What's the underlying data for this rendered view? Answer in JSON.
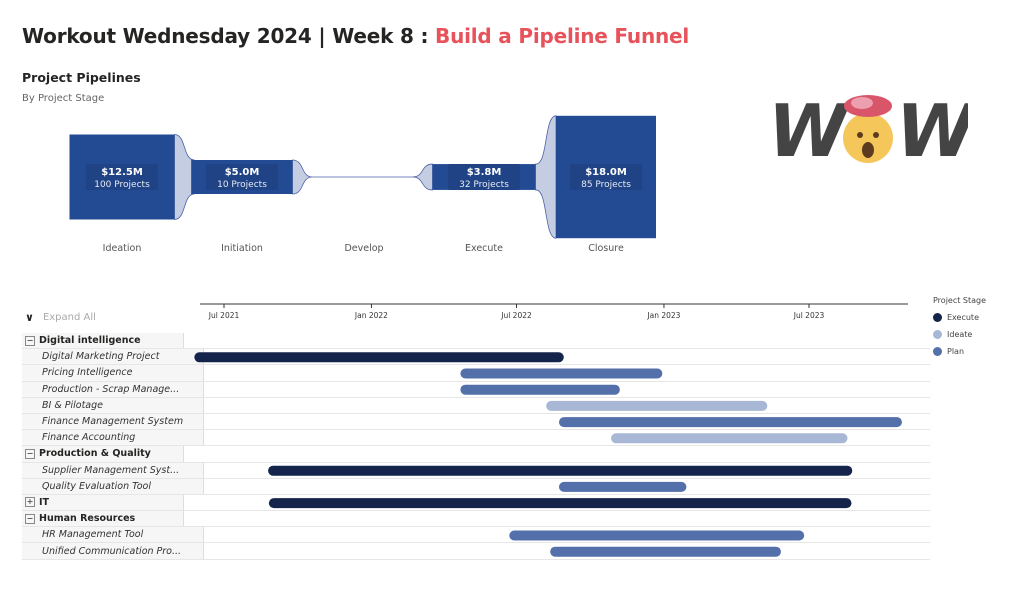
{
  "header": {
    "title_main": "Workout Wednesday 2024 | Week 8 : ",
    "title_accent": "Build a Pipeline Funnel",
    "chart_title": "Project Pipelines",
    "chart_subtitle": "By Project Stage",
    "logo_text": "WOW"
  },
  "colors": {
    "accent": "#e8525b",
    "funnel_box": "#234b93",
    "funnel_connector": "#c5cde2",
    "Execute": "#14244a",
    "Ideate": "#a9b7d6",
    "Plan": "#5370ab"
  },
  "chart_data": [
    {
      "type": "funnel",
      "stages": [
        {
          "name": "Ideation",
          "value_label": "$12.5M",
          "value": 12.5,
          "projects_label": "100 Projects"
        },
        {
          "name": "Initiation",
          "value_label": "$5.0M",
          "value": 5.0,
          "projects_label": "10 Projects"
        },
        {
          "name": "Develop",
          "value_label": "",
          "value": 0,
          "projects_label": ""
        },
        {
          "name": "Execute",
          "value_label": "$3.8M",
          "value": 3.8,
          "projects_label": "32 Projects"
        },
        {
          "name": "Closure",
          "value_label": "$18.0M",
          "value": 18.0,
          "projects_label": "85 Projects"
        }
      ]
    },
    {
      "type": "gantt",
      "expand_label": "Expand All",
      "x_ticks": [
        "Jul 2021",
        "Jan 2022",
        "Jul 2022",
        "Jan 2023",
        "Jul 2023"
      ],
      "xlim": [
        "2021-04-15",
        "2023-10-25"
      ],
      "legend_title": "Project Stage",
      "legend": [
        "Execute",
        "Ideate",
        "Plan"
      ],
      "rows": [
        {
          "label": "Digital intelligence",
          "type": "group",
          "toggle": "−"
        },
        {
          "label": "Digital Marketing Project",
          "type": "item",
          "stage": "Execute",
          "start": "2021-05-25",
          "end": "2022-08-29"
        },
        {
          "label": "Pricing Intelligence",
          "type": "item",
          "stage": "Plan",
          "start": "2022-04-22",
          "end": "2022-12-30"
        },
        {
          "label": "Production - Scrap Manage...",
          "type": "item",
          "stage": "Plan",
          "start": "2022-04-22",
          "end": "2022-11-07"
        },
        {
          "label": "BI & Pilotage",
          "type": "item",
          "stage": "Ideate",
          "start": "2022-08-07",
          "end": "2023-05-10"
        },
        {
          "label": "Finance Management System",
          "type": "item",
          "stage": "Plan",
          "start": "2022-08-23",
          "end": "2023-10-25"
        },
        {
          "label": "Finance Accounting",
          "type": "item",
          "stage": "Ideate",
          "start": "2022-10-27",
          "end": "2023-08-18"
        },
        {
          "label": "Production & Quality",
          "type": "group",
          "toggle": "−"
        },
        {
          "label": "Supplier Management Syst...",
          "type": "item",
          "stage": "Execute",
          "start": "2021-08-25",
          "end": "2023-08-24"
        },
        {
          "label": "Quality Evaluation Tool",
          "type": "item",
          "stage": "Plan",
          "start": "2022-08-23",
          "end": "2023-01-29"
        },
        {
          "label": "IT",
          "type": "group",
          "toggle": "+",
          "stage": "Execute",
          "start": "2021-08-26",
          "end": "2023-08-23"
        },
        {
          "label": "Human Resources",
          "type": "group",
          "toggle": "−"
        },
        {
          "label": "HR Management Tool",
          "type": "item",
          "stage": "Plan",
          "start": "2022-06-22",
          "end": "2023-06-25"
        },
        {
          "label": "Unified Communication Pro...",
          "type": "item",
          "stage": "Plan",
          "start": "2022-08-12",
          "end": "2023-05-27"
        }
      ]
    }
  ]
}
